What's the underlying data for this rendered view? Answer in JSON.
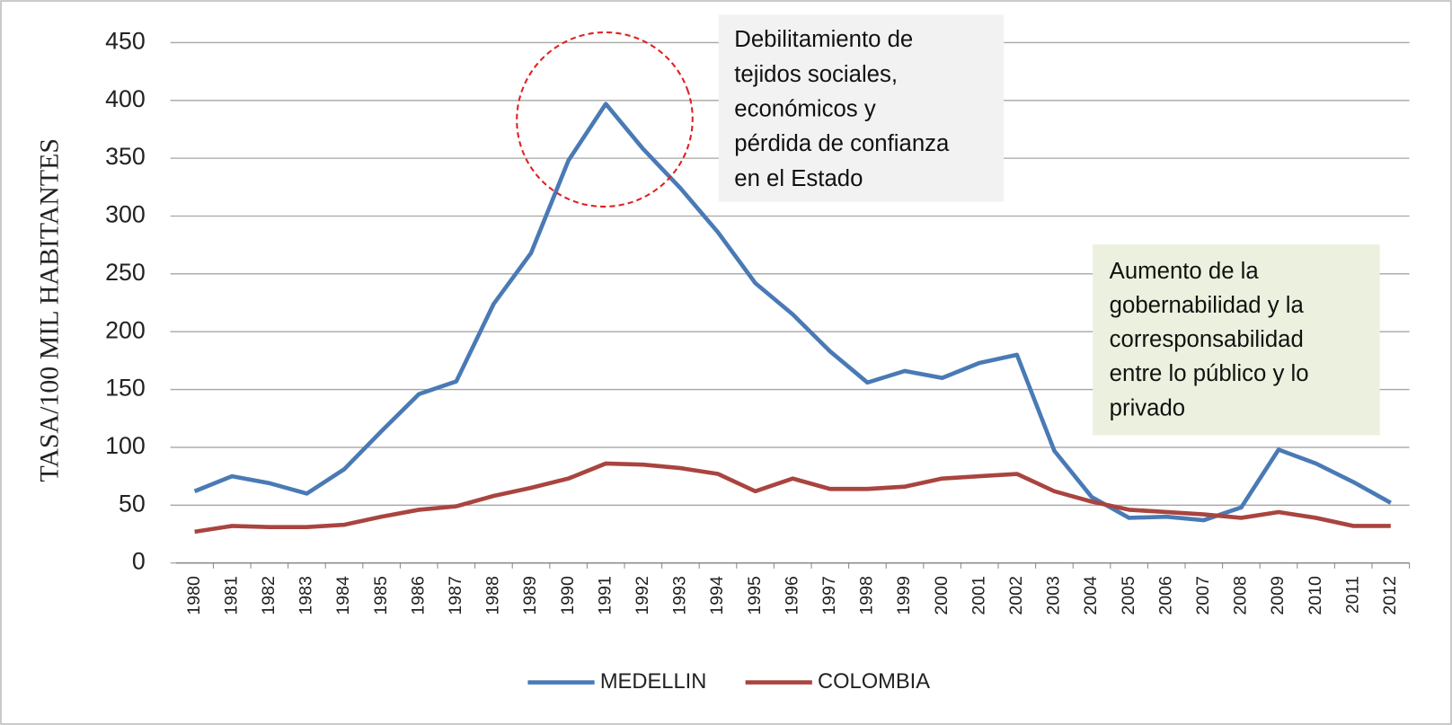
{
  "chart_data": {
    "type": "line",
    "y_label": "TASA/100 MIL HABITANTES",
    "categories": [
      "1980",
      "1981",
      "1982",
      "1983",
      "1984",
      "1985",
      "1986",
      "1987",
      "1988",
      "1989",
      "1990",
      "1991",
      "1992",
      "1993",
      "1994",
      "1995",
      "1996",
      "1997",
      "1998",
      "1999",
      "2000",
      "2001",
      "2002",
      "2003",
      "2004",
      "2005",
      "2006",
      "2007",
      "2008",
      "2009",
      "2010",
      "2011",
      "2012"
    ],
    "series": [
      {
        "name": "MEDELLIN",
        "color": "#4a7ab5",
        "values": [
          62,
          75,
          69,
          60,
          81,
          114,
          146,
          157,
          224,
          268,
          348,
          397,
          358,
          324,
          286,
          242,
          215,
          183,
          156,
          166,
          160,
          173,
          180,
          97,
          57,
          39,
          40,
          37,
          48,
          98,
          86,
          70,
          52
        ]
      },
      {
        "name": "COLOMBIA",
        "color": "#a9443f",
        "values": [
          27,
          32,
          31,
          31,
          33,
          40,
          46,
          49,
          58,
          65,
          73,
          86,
          85,
          82,
          77,
          62,
          73,
          64,
          64,
          66,
          73,
          75,
          77,
          62,
          53,
          46,
          44,
          42,
          39,
          44,
          39,
          32,
          32
        ]
      }
    ],
    "ylim": [
      0,
      450
    ],
    "yticks": [
      0,
      50,
      100,
      150,
      200,
      250,
      300,
      350,
      400,
      450
    ],
    "grid": true,
    "legend": "bottom",
    "annotations": [
      {
        "lines": [
          "Debilitamiento de",
          "tejidos sociales,",
          "económicos y",
          "pérdida de confianza",
          "en el Estado"
        ],
        "color": "#f2f2f2"
      },
      {
        "lines": [
          "Aumento de la",
          "gobernabilidad y la",
          "corresponsabilidad",
          "entre lo público y lo",
          "privado"
        ],
        "color": "#ebf1de"
      }
    ]
  }
}
